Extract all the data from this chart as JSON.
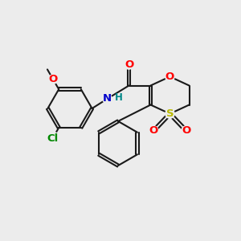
{
  "bg_color": "#ececec",
  "bond_color": "#1a1a1a",
  "bond_lw": 1.5,
  "dbl_off": 0.055,
  "colors": {
    "O": "#ff0000",
    "S": "#b8b800",
    "N": "#0000cc",
    "H": "#008888",
    "Cl": "#008800",
    "C": "#1a1a1a"
  },
  "fs": 9.5,
  "fsh": 8.5
}
